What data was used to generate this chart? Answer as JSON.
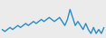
{
  "values": [
    5,
    4.5,
    5,
    5.5,
    5,
    5.5,
    6,
    5.5,
    6,
    6.5,
    6,
    6.5,
    7,
    6.5,
    7,
    7.5,
    7,
    7.5,
    8,
    7.5,
    7,
    7.5,
    8,
    7,
    6,
    7.5,
    10,
    8,
    6,
    7,
    6,
    5,
    6.5,
    5,
    4,
    5.5,
    4,
    5,
    4,
    5.5
  ],
  "line_color": "#2b8cc4",
  "linewidth": 1.0,
  "background_color": "#ebebeb"
}
